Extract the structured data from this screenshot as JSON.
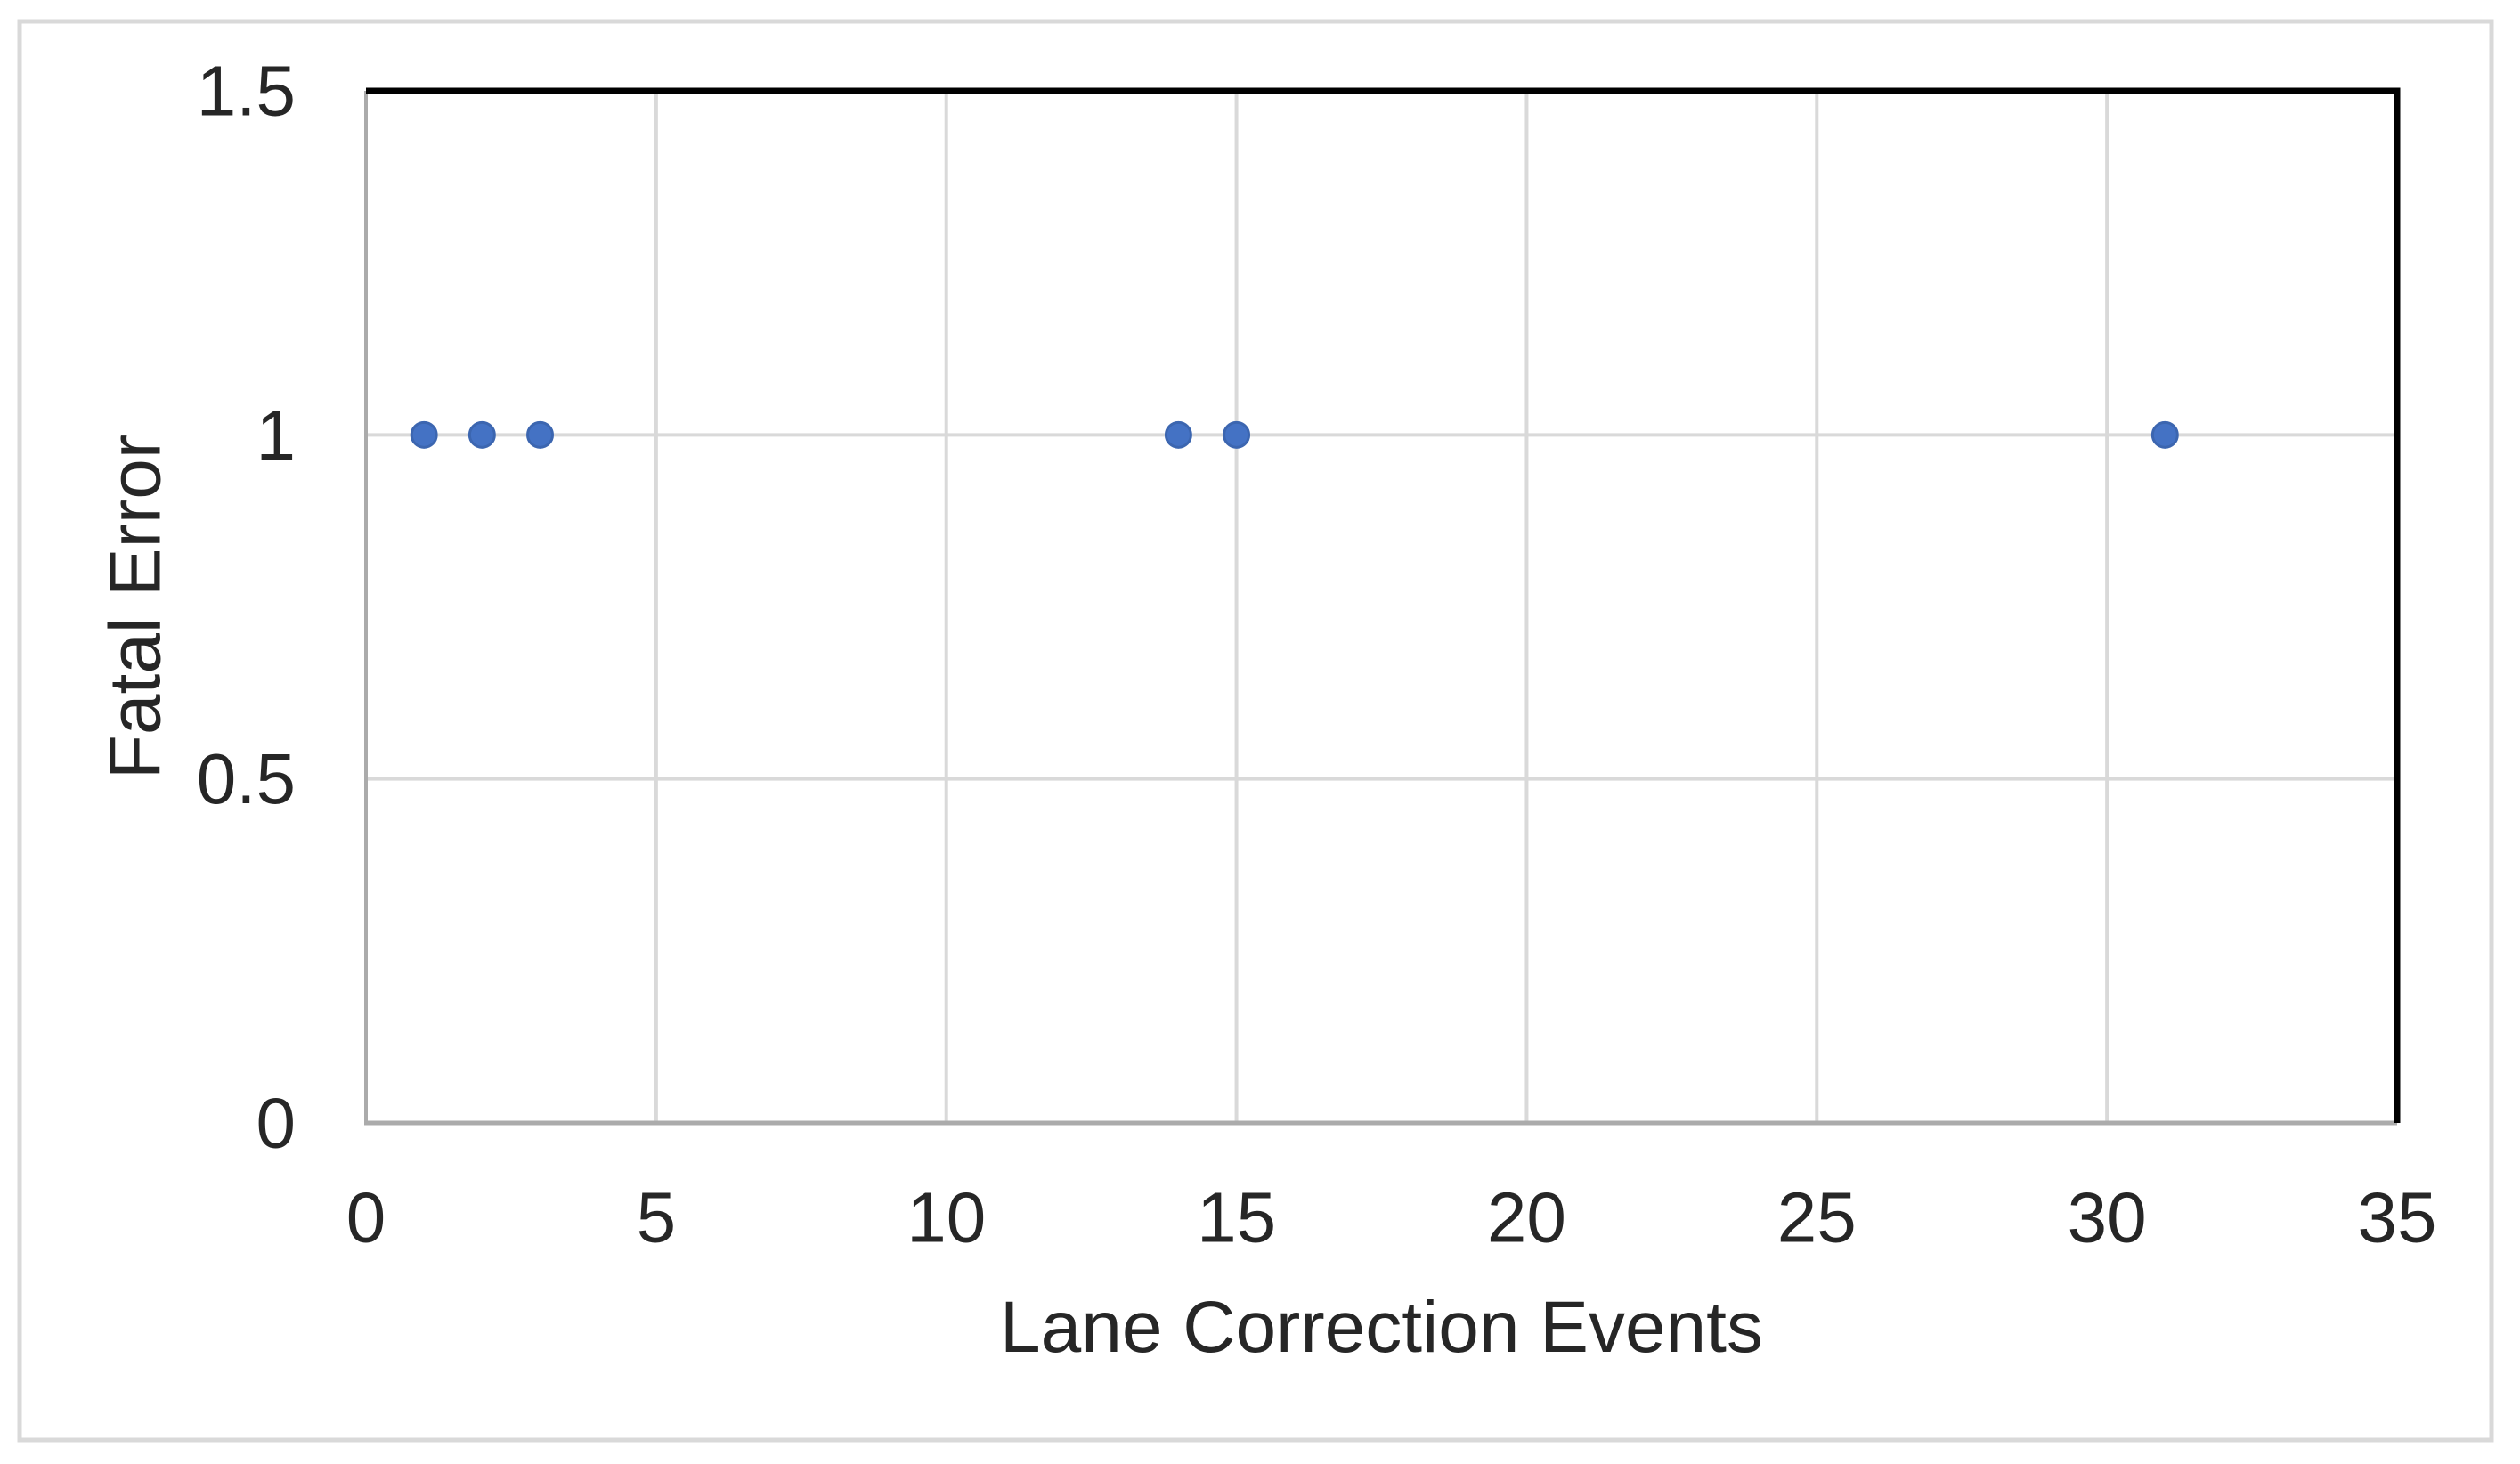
{
  "figure": {
    "background": "#ffffff",
    "border_color": "#d9d9d9"
  },
  "chart_data": {
    "type": "scatter",
    "title": "",
    "xlabel": "Lane Correction Events",
    "ylabel": "Fatal Error",
    "points": [
      {
        "x": 1,
        "y": 1
      },
      {
        "x": 2,
        "y": 1
      },
      {
        "x": 3,
        "y": 1
      },
      {
        "x": 14,
        "y": 1
      },
      {
        "x": 15,
        "y": 1
      },
      {
        "x": 31,
        "y": 1
      }
    ],
    "xlim": [
      0,
      35
    ],
    "ylim": [
      0,
      1.5
    ],
    "xticks": [
      0,
      5,
      10,
      15,
      20,
      25,
      30,
      35
    ],
    "xtick_labels": [
      "0",
      "5",
      "10",
      "15",
      "20",
      "25",
      "30",
      "35"
    ],
    "yticks": [
      0,
      0.5,
      1,
      1.5
    ],
    "ytick_labels": [
      "0",
      "0.5",
      "1",
      "1.5"
    ],
    "grid": true,
    "legend": false,
    "marker": {
      "shape": "circle",
      "color": "#4472C4",
      "edge_color": "#3c66b0"
    },
    "styles": {
      "gridline_color": "#d9d9d9",
      "axis_line_color": "#ababab",
      "plot_border_top_right_color": "#000000",
      "text_color": "#262626"
    }
  }
}
